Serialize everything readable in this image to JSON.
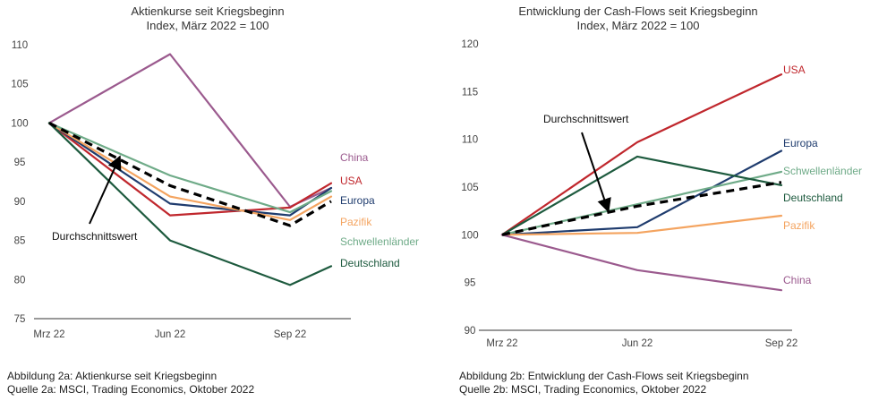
{
  "chart_data": [
    {
      "type": "line",
      "title": "Aktienkurse seit Kriegsbeginn",
      "subtitle": "Index, März 2022 = 100",
      "x": [
        "Mrz 22",
        "Jun 22",
        "Sep 22",
        ""
      ],
      "ylim": [
        75,
        110
      ],
      "yticks": [
        75,
        80,
        85,
        90,
        95,
        100,
        105,
        110
      ],
      "grid": false,
      "series": [
        {
          "name": "China",
          "color": "#9b5a8e",
          "width": 2.2,
          "values": [
            100,
            108.8,
            89.3,
            91.7
          ]
        },
        {
          "name": "USA",
          "color": "#c0272d",
          "width": 2.2,
          "values": [
            100,
            88.2,
            89.2,
            92.3
          ]
        },
        {
          "name": "Europa",
          "color": "#1f3c6e",
          "width": 2.2,
          "values": [
            100,
            89.7,
            88.2,
            91.7
          ]
        },
        {
          "name": "Pazifik",
          "color": "#f4a460",
          "width": 2.2,
          "values": [
            100,
            90.6,
            87.6,
            90.6
          ]
        },
        {
          "name": "Schwellenländer",
          "color": "#6fab88",
          "width": 2.2,
          "values": [
            100,
            93.3,
            88.6,
            91.3
          ]
        },
        {
          "name": "Deutschland",
          "color": "#1d5a3e",
          "width": 2.2,
          "values": [
            100,
            85.0,
            79.3,
            81.7
          ]
        },
        {
          "name": "Durchschnittswert",
          "color": "#000000",
          "width": 3.2,
          "dashed": true,
          "values": [
            100,
            92.0,
            86.9,
            90.0
          ]
        }
      ],
      "annotation": "Durchschnittswert",
      "caption_line1": "Abbildung 2a: Aktienkurse seit Kriegsbeginn",
      "caption_line2": "Quelle 2a: MSCI, Trading Economics, Oktober 2022"
    },
    {
      "type": "line",
      "title": "Entwicklung der Cash-Flows seit Kriegsbeginn",
      "subtitle": "Index, März 2022 = 100",
      "x": [
        "Mrz 22",
        "Jun 22",
        "Sep 22"
      ],
      "ylim": [
        90,
        120
      ],
      "yticks": [
        90,
        95,
        100,
        105,
        110,
        115,
        120
      ],
      "grid": false,
      "series": [
        {
          "name": "USA",
          "color": "#c0272d",
          "width": 2.2,
          "values": [
            100,
            109.7,
            116.8
          ]
        },
        {
          "name": "Europa",
          "color": "#1f3c6e",
          "width": 2.2,
          "values": [
            100,
            100.8,
            108.8
          ]
        },
        {
          "name": "Schwellenländer",
          "color": "#6fab88",
          "width": 2.2,
          "values": [
            100,
            103.2,
            106.6
          ]
        },
        {
          "name": "Deutschland",
          "color": "#1d5a3e",
          "width": 2.2,
          "values": [
            100,
            108.2,
            105.2
          ]
        },
        {
          "name": "Pazifik",
          "color": "#f4a460",
          "width": 2.2,
          "values": [
            100,
            100.2,
            102.0
          ]
        },
        {
          "name": "China",
          "color": "#9b5a8e",
          "width": 2.2,
          "values": [
            100,
            96.3,
            94.2
          ]
        },
        {
          "name": "Durchschnittswert",
          "color": "#000000",
          "width": 3.2,
          "dashed": true,
          "values": [
            100,
            103.0,
            105.5
          ]
        }
      ],
      "annotation": "Durchschnittswert",
      "caption_line1": "Abbildung 2b: Entwicklung der Cash-Flows seit Kriegsbeginn",
      "caption_line2": "Quelle 2b: MSCI, Trading Economics, Oktober 2022"
    }
  ]
}
